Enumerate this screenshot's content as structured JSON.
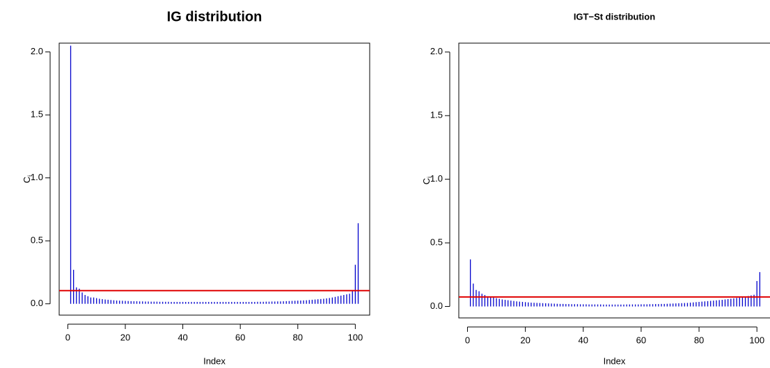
{
  "chart_data": [
    {
      "type": "spike",
      "title": "IG distribution",
      "xlabel": "Index",
      "ylabel": "C",
      "ylabel_subscript": "i",
      "color": "#0000cc",
      "hline": 0.105,
      "hline_color": "#e00000",
      "xlim": [
        -3,
        105
      ],
      "ylim": [
        -0.09,
        2.07
      ],
      "xticks": [
        0,
        20,
        40,
        60,
        80,
        100
      ],
      "yticks": [
        {
          "value": 0,
          "label": "0.0"
        },
        {
          "value": 0.5,
          "label": "0.5"
        },
        {
          "value": 1,
          "label": "1.0"
        },
        {
          "value": 1.5,
          "label": "1.5"
        },
        {
          "value": 2,
          "label": "2.0"
        }
      ],
      "x": [
        1,
        2,
        3,
        4,
        5,
        6,
        7,
        8,
        9,
        10,
        11,
        12,
        13,
        14,
        15,
        16,
        17,
        18,
        19,
        20,
        21,
        22,
        23,
        24,
        25,
        26,
        27,
        28,
        29,
        30,
        31,
        32,
        33,
        34,
        35,
        36,
        37,
        38,
        39,
        40,
        41,
        42,
        43,
        44,
        45,
        46,
        47,
        48,
        49,
        50,
        51,
        52,
        53,
        54,
        55,
        56,
        57,
        58,
        59,
        60,
        61,
        62,
        63,
        64,
        65,
        66,
        67,
        68,
        69,
        70,
        71,
        72,
        73,
        74,
        75,
        76,
        77,
        78,
        79,
        80,
        81,
        82,
        83,
        84,
        85,
        86,
        87,
        88,
        89,
        90,
        91,
        92,
        93,
        94,
        95,
        96,
        97,
        98,
        99,
        100,
        101
      ],
      "values": [
        2.05,
        0.27,
        0.13,
        0.12,
        0.09,
        0.07,
        0.06,
        0.05,
        0.05,
        0.045,
        0.04,
        0.037,
        0.034,
        0.032,
        0.03,
        0.028,
        0.026,
        0.025,
        0.024,
        0.023,
        0.022,
        0.021,
        0.02,
        0.02,
        0.019,
        0.019,
        0.018,
        0.018,
        0.017,
        0.017,
        0.017,
        0.016,
        0.016,
        0.016,
        0.016,
        0.015,
        0.015,
        0.015,
        0.015,
        0.015,
        0.015,
        0.015,
        0.015,
        0.015,
        0.015,
        0.015,
        0.015,
        0.015,
        0.015,
        0.015,
        0.015,
        0.015,
        0.015,
        0.015,
        0.015,
        0.015,
        0.015,
        0.015,
        0.015,
        0.015,
        0.015,
        0.015,
        0.015,
        0.015,
        0.015,
        0.016,
        0.016,
        0.016,
        0.017,
        0.017,
        0.018,
        0.018,
        0.019,
        0.019,
        0.02,
        0.021,
        0.022,
        0.023,
        0.024,
        0.025,
        0.026,
        0.027,
        0.028,
        0.03,
        0.032,
        0.034,
        0.036,
        0.038,
        0.04,
        0.043,
        0.046,
        0.05,
        0.055,
        0.06,
        0.065,
        0.07,
        0.075,
        0.08,
        0.1,
        0.31,
        0.64
      ]
    },
    {
      "type": "spike",
      "title": "IGT−St distribution",
      "xlabel": "Index",
      "ylabel": "C",
      "ylabel_subscript": "i",
      "color": "#0000cc",
      "hline": 0.075,
      "hline_color": "#e00000",
      "xlim": [
        -3,
        105
      ],
      "ylim": [
        -0.09,
        2.07
      ],
      "xticks": [
        0,
        20,
        40,
        60,
        80,
        100
      ],
      "yticks": [
        {
          "value": 0,
          "label": "0.0"
        },
        {
          "value": 0.5,
          "label": "0.5"
        },
        {
          "value": 1,
          "label": "1.0"
        },
        {
          "value": 1.5,
          "label": "1.5"
        },
        {
          "value": 2,
          "label": "2.0"
        }
      ],
      "x": [
        1,
        2,
        3,
        4,
        5,
        6,
        7,
        8,
        9,
        10,
        11,
        12,
        13,
        14,
        15,
        16,
        17,
        18,
        19,
        20,
        21,
        22,
        23,
        24,
        25,
        26,
        27,
        28,
        29,
        30,
        31,
        32,
        33,
        34,
        35,
        36,
        37,
        38,
        39,
        40,
        41,
        42,
        43,
        44,
        45,
        46,
        47,
        48,
        49,
        50,
        51,
        52,
        53,
        54,
        55,
        56,
        57,
        58,
        59,
        60,
        61,
        62,
        63,
        64,
        65,
        66,
        67,
        68,
        69,
        70,
        71,
        72,
        73,
        74,
        75,
        76,
        77,
        78,
        79,
        80,
        81,
        82,
        83,
        84,
        85,
        86,
        87,
        88,
        89,
        90,
        91,
        92,
        93,
        94,
        95,
        96,
        97,
        98,
        99,
        100,
        101
      ],
      "values": [
        0.37,
        0.18,
        0.13,
        0.12,
        0.1,
        0.09,
        0.08,
        0.075,
        0.07,
        0.065,
        0.06,
        0.055,
        0.052,
        0.049,
        0.046,
        0.043,
        0.04,
        0.038,
        0.036,
        0.034,
        0.032,
        0.03,
        0.029,
        0.028,
        0.027,
        0.026,
        0.025,
        0.024,
        0.023,
        0.022,
        0.021,
        0.02,
        0.02,
        0.019,
        0.019,
        0.018,
        0.018,
        0.018,
        0.017,
        0.017,
        0.017,
        0.016,
        0.016,
        0.016,
        0.016,
        0.016,
        0.015,
        0.015,
        0.015,
        0.015,
        0.015,
        0.015,
        0.015,
        0.015,
        0.016,
        0.016,
        0.016,
        0.016,
        0.016,
        0.017,
        0.017,
        0.017,
        0.018,
        0.018,
        0.019,
        0.019,
        0.02,
        0.02,
        0.021,
        0.022,
        0.023,
        0.024,
        0.025,
        0.026,
        0.027,
        0.028,
        0.03,
        0.032,
        0.034,
        0.036,
        0.038,
        0.04,
        0.042,
        0.044,
        0.046,
        0.048,
        0.05,
        0.052,
        0.055,
        0.058,
        0.061,
        0.064,
        0.067,
        0.07,
        0.074,
        0.078,
        0.082,
        0.087,
        0.092,
        0.2,
        0.27
      ]
    }
  ]
}
